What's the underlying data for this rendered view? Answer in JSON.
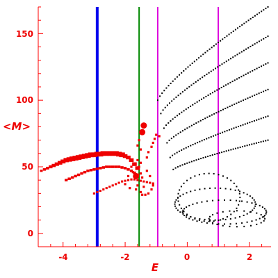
{
  "chart_data": {
    "type": "scatter",
    "title": "",
    "xlabel": "E",
    "ylabel": "<M>",
    "xlim": [
      -4.8,
      2.7
    ],
    "ylim": [
      -10,
      170
    ],
    "x_ticks": [
      -4,
      -2,
      0,
      2
    ],
    "y_ticks": [
      0,
      50,
      100,
      150
    ],
    "x_tick_labels": [
      "-4",
      "-2",
      "0",
      "2"
    ],
    "y_tick_labels": [
      "0",
      "50",
      "100",
      "150"
    ],
    "colors": {
      "axes": "#ff0000",
      "red_series": "#ee0000",
      "black_series": "#000000",
      "line_blue": "#0000ee",
      "line_green": "#008800",
      "line_magenta": "#dd00dd"
    },
    "vertical_lines": [
      {
        "x": -2.9,
        "color": "#0000ee",
        "width": "thick"
      },
      {
        "x": -1.55,
        "color": "#008800",
        "width": "thin"
      },
      {
        "x": -0.95,
        "color": "#dd00dd",
        "width": "thin"
      },
      {
        "x": 1.0,
        "color": "#dd00dd",
        "width": "thin"
      }
    ],
    "series": [
      {
        "color": "#ee0000",
        "marker": "large",
        "points": [
          [
            -4.7,
            47
          ],
          [
            -4.6,
            48
          ],
          [
            -4.5,
            49
          ],
          [
            -4.4,
            50
          ],
          [
            -4.3,
            51
          ],
          [
            -4.2,
            52
          ],
          [
            -4.1,
            53
          ],
          [
            -4.0,
            54
          ],
          [
            -3.9,
            55
          ],
          [
            -3.8,
            55.5
          ],
          [
            -3.7,
            56
          ],
          [
            -3.6,
            56.5
          ],
          [
            -3.5,
            57
          ],
          [
            -3.4,
            57.5
          ],
          [
            -3.3,
            58
          ],
          [
            -3.2,
            58.5
          ],
          [
            -3.1,
            59
          ],
          [
            -3.0,
            59
          ],
          [
            -2.9,
            59.5
          ],
          [
            -2.8,
            59.5
          ],
          [
            -2.7,
            60
          ],
          [
            -2.6,
            60
          ],
          [
            -2.5,
            60
          ],
          [
            -2.4,
            60
          ],
          [
            -2.3,
            60
          ],
          [
            -2.2,
            59.5
          ],
          [
            -2.1,
            59
          ],
          [
            -2.0,
            58
          ],
          [
            -1.9,
            57
          ],
          [
            -1.8,
            55
          ],
          [
            -1.7,
            52
          ],
          [
            -1.6,
            49
          ]
        ]
      },
      {
        "color": "#ee0000",
        "marker": "medium",
        "points": [
          [
            -3.9,
            40
          ],
          [
            -3.8,
            41
          ],
          [
            -3.7,
            42
          ],
          [
            -3.6,
            43
          ],
          [
            -3.5,
            44
          ],
          [
            -3.4,
            45
          ],
          [
            -3.3,
            46
          ],
          [
            -3.2,
            47
          ],
          [
            -3.1,
            47.5
          ],
          [
            -3.0,
            48
          ],
          [
            -2.9,
            48.5
          ],
          [
            -2.8,
            49
          ],
          [
            -2.7,
            49.5
          ],
          [
            -2.6,
            50
          ],
          [
            -2.5,
            50
          ],
          [
            -2.4,
            50
          ],
          [
            -2.3,
            50
          ],
          [
            -2.2,
            50
          ],
          [
            -2.1,
            49.5
          ],
          [
            -2.0,
            49
          ],
          [
            -1.9,
            48
          ],
          [
            -1.8,
            47
          ],
          [
            -1.7,
            45.5
          ],
          [
            -1.6,
            44
          ]
        ]
      },
      {
        "color": "#ee0000",
        "marker": "small",
        "points": [
          [
            -3.0,
            30
          ],
          [
            -2.9,
            31
          ],
          [
            -2.8,
            32
          ],
          [
            -2.7,
            33
          ],
          [
            -2.6,
            34
          ],
          [
            -2.5,
            35
          ],
          [
            -2.4,
            36
          ],
          [
            -2.3,
            37
          ],
          [
            -2.2,
            38
          ],
          [
            -2.1,
            39
          ],
          [
            -2.0,
            39.5
          ],
          [
            -1.9,
            40
          ],
          [
            -1.8,
            40.5
          ],
          [
            -1.7,
            40.5
          ],
          [
            -1.6,
            40
          ],
          [
            -1.5,
            39.5
          ],
          [
            -1.4,
            39
          ],
          [
            -1.3,
            38.5
          ],
          [
            -1.2,
            38
          ],
          [
            -1.1,
            37.5
          ]
        ]
      },
      {
        "color": "#ee0000",
        "marker": "scattered",
        "points": [
          [
            -1.6,
            66
          ],
          [
            -1.55,
            70
          ],
          [
            -1.5,
            63
          ],
          [
            -1.6,
            55
          ],
          [
            -1.55,
            50
          ],
          [
            -1.5,
            45
          ],
          [
            -1.45,
            42
          ],
          [
            -1.4,
            35
          ],
          [
            -1.6,
            36
          ],
          [
            -1.7,
            43
          ],
          [
            -1.75,
            46
          ],
          [
            -1.8,
            50
          ],
          [
            -1.9,
            43
          ],
          [
            -2.0,
            37
          ],
          [
            -1.85,
            34
          ],
          [
            -1.65,
            33
          ],
          [
            -1.5,
            31
          ],
          [
            -1.45,
            29
          ],
          [
            -1.35,
            29
          ],
          [
            -1.25,
            30
          ],
          [
            -1.15,
            33
          ],
          [
            -1.1,
            36
          ],
          [
            -1.2,
            43
          ],
          [
            -1.3,
            47
          ],
          [
            -1.5,
            53
          ],
          [
            -1.3,
            57
          ],
          [
            -1.25,
            61
          ],
          [
            -1.15,
            65
          ],
          [
            -1.1,
            68
          ],
          [
            -1.05,
            71
          ],
          [
            -1.0,
            74
          ],
          [
            -0.9,
            73
          ]
        ]
      },
      {
        "color": "#ee0000",
        "marker": "highlight",
        "points": [
          [
            -1.45,
            76
          ],
          [
            -1.4,
            81
          ],
          [
            -1.65,
            43
          ]
        ]
      }
    ],
    "black_bands": [
      {
        "x0": -0.95,
        "y0": 100,
        "x1": 2.6,
        "y1": 170,
        "n": 52
      },
      {
        "x0": -0.85,
        "y0": 90,
        "x1": 2.6,
        "y1": 148,
        "n": 50
      },
      {
        "x0": -0.75,
        "y0": 79,
        "x1": 2.6,
        "y1": 128,
        "n": 48
      },
      {
        "x0": -0.65,
        "y0": 68,
        "x1": 2.6,
        "y1": 108,
        "n": 46
      },
      {
        "x0": -0.55,
        "y0": 57,
        "x1": 2.6,
        "y1": 88,
        "n": 44
      },
      {
        "x0": -0.45,
        "y0": 48,
        "x1": 2.6,
        "y1": 70,
        "n": 42
      }
    ],
    "black_loops": [
      {
        "cx": 0.7,
        "cy": 27,
        "rx": 1.0,
        "ry": 18,
        "n": 40
      },
      {
        "cx": 0.9,
        "cy": 22,
        "rx": 1.3,
        "ry": 12,
        "n": 48
      },
      {
        "cx": 1.2,
        "cy": 16,
        "rx": 1.35,
        "ry": 9,
        "n": 44
      },
      {
        "cx": 1.6,
        "cy": 11,
        "rx": 0.9,
        "ry": 6,
        "n": 24
      }
    ]
  }
}
